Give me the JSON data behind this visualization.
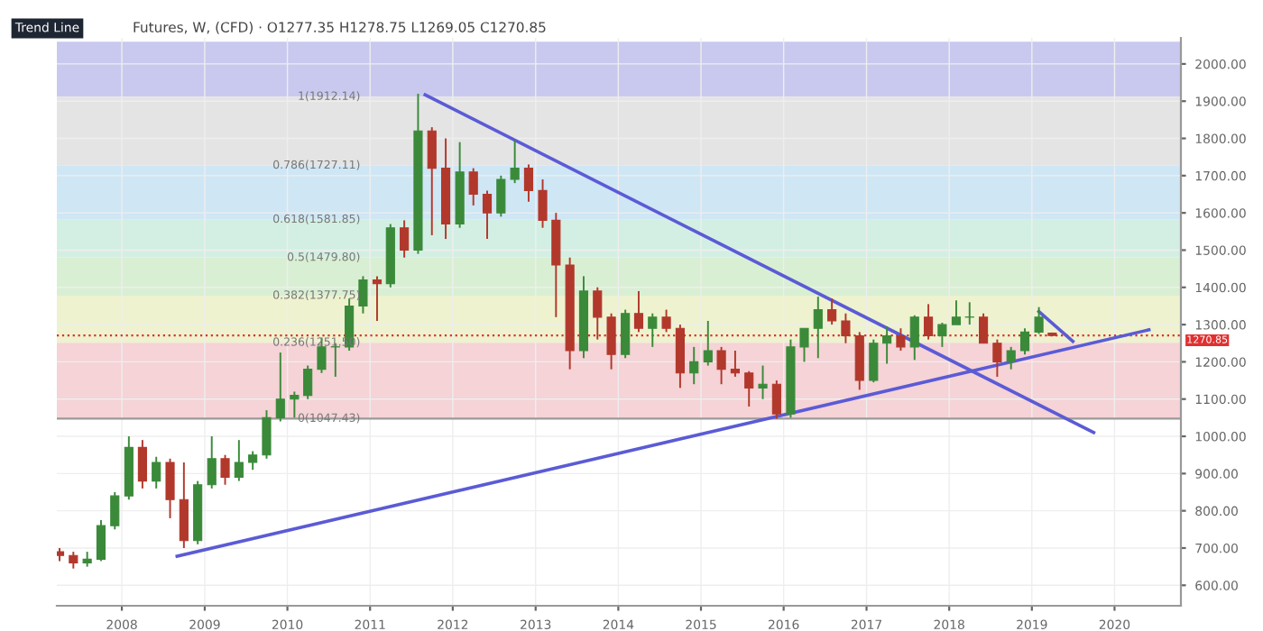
{
  "chart_data": {
    "type": "candlestick",
    "title": "Futures, W, (CFD) · O1277.35 H1278.75 L1269.05 C1270.85",
    "annotations": [
      "Trend Line"
    ],
    "x": [
      "2007-04",
      "2007-06",
      "2007-08",
      "2007-10",
      "2007-12",
      "2008-02",
      "2008-04",
      "2008-06",
      "2008-08",
      "2008-10",
      "2008-12",
      "2009-02",
      "2009-04",
      "2009-06",
      "2009-08",
      "2009-10",
      "2009-12",
      "2010-02",
      "2010-04",
      "2010-06",
      "2010-08",
      "2010-10",
      "2010-12",
      "2011-02",
      "2011-04",
      "2011-06",
      "2011-08",
      "2011-10",
      "2011-12",
      "2012-02",
      "2012-04",
      "2012-06",
      "2012-08",
      "2012-10",
      "2012-12",
      "2013-02",
      "2013-04",
      "2013-06",
      "2013-08",
      "2013-10",
      "2013-12",
      "2014-02",
      "2014-04",
      "2014-06",
      "2014-08",
      "2014-10",
      "2014-12",
      "2015-02",
      "2015-04",
      "2015-06",
      "2015-08",
      "2015-10",
      "2015-12",
      "2016-02",
      "2016-04",
      "2016-06",
      "2016-08",
      "2016-10",
      "2016-12",
      "2017-02",
      "2017-04",
      "2017-06",
      "2017-08",
      "2017-10",
      "2017-12",
      "2018-02",
      "2018-04",
      "2018-06",
      "2018-08",
      "2018-10",
      "2018-12",
      "2019-02",
      "2019-04"
    ],
    "ohlc": [
      [
        690,
        700,
        665,
        680
      ],
      [
        680,
        690,
        645,
        660
      ],
      [
        660,
        690,
        650,
        670
      ],
      [
        670,
        775,
        665,
        760
      ],
      [
        760,
        850,
        750,
        840
      ],
      [
        840,
        1000,
        830,
        970
      ],
      [
        970,
        990,
        860,
        880
      ],
      [
        880,
        945,
        860,
        930
      ],
      [
        930,
        940,
        780,
        830
      ],
      [
        830,
        930,
        700,
        720
      ],
      [
        720,
        880,
        710,
        870
      ],
      [
        870,
        1000,
        860,
        940
      ],
      [
        940,
        950,
        870,
        890
      ],
      [
        890,
        990,
        880,
        930
      ],
      [
        930,
        960,
        910,
        950
      ],
      [
        950,
        1070,
        940,
        1050
      ],
      [
        1050,
        1225,
        1040,
        1100
      ],
      [
        1100,
        1120,
        1050,
        1110
      ],
      [
        1110,
        1190,
        1100,
        1180
      ],
      [
        1180,
        1265,
        1170,
        1240
      ],
      [
        1240,
        1250,
        1160,
        1240
      ],
      [
        1240,
        1370,
        1230,
        1350
      ],
      [
        1350,
        1430,
        1330,
        1420
      ],
      [
        1420,
        1430,
        1310,
        1410
      ],
      [
        1410,
        1570,
        1400,
        1560
      ],
      [
        1560,
        1580,
        1480,
        1500
      ],
      [
        1500,
        1920,
        1490,
        1820
      ],
      [
        1820,
        1830,
        1540,
        1720
      ],
      [
        1720,
        1800,
        1530,
        1570
      ],
      [
        1570,
        1790,
        1560,
        1710
      ],
      [
        1710,
        1720,
        1620,
        1650
      ],
      [
        1650,
        1660,
        1530,
        1600
      ],
      [
        1600,
        1700,
        1590,
        1690
      ],
      [
        1690,
        1795,
        1680,
        1720
      ],
      [
        1720,
        1730,
        1630,
        1660
      ],
      [
        1660,
        1690,
        1560,
        1580
      ],
      [
        1580,
        1600,
        1320,
        1460
      ],
      [
        1460,
        1480,
        1180,
        1230
      ],
      [
        1230,
        1430,
        1210,
        1390
      ],
      [
        1390,
        1400,
        1260,
        1320
      ],
      [
        1320,
        1330,
        1180,
        1220
      ],
      [
        1220,
        1340,
        1210,
        1330
      ],
      [
        1330,
        1390,
        1280,
        1290
      ],
      [
        1290,
        1330,
        1240,
        1320
      ],
      [
        1320,
        1340,
        1280,
        1290
      ],
      [
        1290,
        1300,
        1130,
        1170
      ],
      [
        1170,
        1240,
        1140,
        1200
      ],
      [
        1200,
        1310,
        1190,
        1230
      ],
      [
        1230,
        1240,
        1140,
        1180
      ],
      [
        1180,
        1230,
        1160,
        1170
      ],
      [
        1170,
        1175,
        1080,
        1130
      ],
      [
        1130,
        1190,
        1100,
        1140
      ],
      [
        1140,
        1150,
        1047,
        1060
      ],
      [
        1060,
        1260,
        1050,
        1240
      ],
      [
        1240,
        1290,
        1200,
        1290
      ],
      [
        1290,
        1375,
        1210,
        1340
      ],
      [
        1340,
        1370,
        1300,
        1310
      ],
      [
        1310,
        1330,
        1250,
        1270
      ],
      [
        1270,
        1280,
        1125,
        1150
      ],
      [
        1150,
        1260,
        1145,
        1250
      ],
      [
        1250,
        1295,
        1195,
        1270
      ],
      [
        1270,
        1290,
        1230,
        1240
      ],
      [
        1240,
        1325,
        1205,
        1320
      ],
      [
        1320,
        1355,
        1260,
        1270
      ],
      [
        1270,
        1305,
        1240,
        1300
      ],
      [
        1300,
        1365,
        1300,
        1320
      ],
      [
        1320,
        1360,
        1300,
        1320
      ],
      [
        1320,
        1330,
        1250,
        1250
      ],
      [
        1250,
        1260,
        1160,
        1200
      ],
      [
        1200,
        1240,
        1180,
        1230
      ],
      [
        1230,
        1290,
        1220,
        1280
      ],
      [
        1280,
        1347,
        1275,
        1320
      ],
      [
        1277.35,
        1278.75,
        1269.05,
        1270.85
      ]
    ],
    "series": [
      {
        "type": "line",
        "color": "#5b5bd6",
        "x": [
          "2011-09",
          "2019-10"
        ],
        "values": [
          1917,
          1010
        ]
      },
      {
        "type": "line",
        "color": "#5b5bd6",
        "x": [
          "2008-09",
          "2020-06"
        ],
        "values": [
          678,
          1286
        ]
      },
      {
        "type": "line",
        "color": "#5b5bd6",
        "x": [
          "2019-02",
          "2019-07"
        ],
        "values": [
          1335,
          1255
        ]
      }
    ],
    "bands": [
      {
        "axis": "y",
        "from": 1912.14,
        "to": 2060,
        "color": "#c9c9ef"
      },
      {
        "axis": "y",
        "from": 1727.11,
        "to": 1912.14,
        "label": "1(1912.14)",
        "color": "#e4e4e4"
      },
      {
        "axis": "y",
        "from": 1581.85,
        "to": 1727.11,
        "label": "0.786(1727.11)",
        "color": "#cfe6f5"
      },
      {
        "axis": "y",
        "from": 1479.8,
        "to": 1581.85,
        "label": "0.618(1581.85)",
        "color": "#d3efe4"
      },
      {
        "axis": "y",
        "from": 1377.75,
        "to": 1479.8,
        "label": "0.5(1479.80)",
        "color": "#d9efd3"
      },
      {
        "axis": "y",
        "from": 1251.5,
        "to": 1377.75,
        "label": "0.382(1377.75)",
        "color": "#eef2cf"
      },
      {
        "axis": "y",
        "from": 1047.43,
        "to": 1251.5,
        "label": "0.236(1251.50)",
        "color": "#f5d3d6"
      }
    ],
    "ref_lines": [
      {
        "axis": "y",
        "value": 1047.43,
        "label": "0(1047.43)",
        "color": "#9a9a9a"
      },
      {
        "axis": "y",
        "value": 1270.85,
        "label": "1270.85",
        "color": "#e03030",
        "line_style": "dotted"
      }
    ],
    "xlim": [
      "2007-03-20",
      "2020-10-20"
    ],
    "xticks": [
      "2008",
      "2009",
      "2010",
      "2011",
      "2012",
      "2013",
      "2014",
      "2015",
      "2016",
      "2017",
      "2018",
      "2019",
      "2020"
    ],
    "ylim": [
      545,
      2070
    ],
    "yticks": [
      {
        "value": 600,
        "label": "600.00"
      },
      {
        "value": 700,
        "label": "700.00"
      },
      {
        "value": 800,
        "label": "800.00"
      },
      {
        "value": 900,
        "label": "900.00"
      },
      {
        "value": 1000,
        "label": "1000.00"
      },
      {
        "value": 1100,
        "label": "1100.00"
      },
      {
        "value": 1200,
        "label": "1200.00"
      },
      {
        "value": 1300,
        "label": "1300.00"
      },
      {
        "value": 1400,
        "label": "1400.00"
      },
      {
        "value": 1500,
        "label": "1500.00"
      },
      {
        "value": 1600,
        "label": "1600.00"
      },
      {
        "value": 1700,
        "label": "1700.00"
      },
      {
        "value": 1800,
        "label": "1800.00"
      },
      {
        "value": 1900,
        "label": "1900.00"
      },
      {
        "value": 2000,
        "label": "2000.00"
      }
    ],
    "grid": true,
    "legend": false
  }
}
